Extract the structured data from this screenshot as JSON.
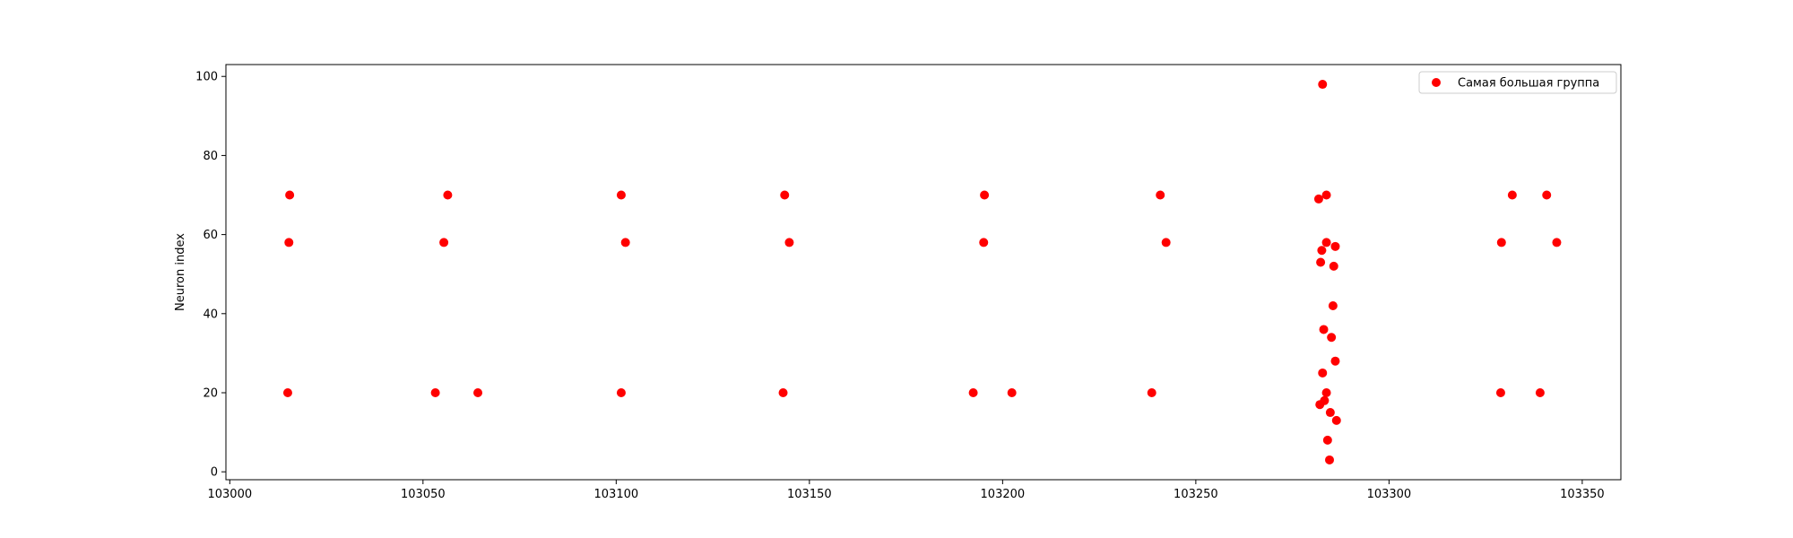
{
  "chart_data": {
    "type": "scatter",
    "title": "",
    "xlabel": "",
    "ylabel": "Neuron index",
    "xlim": [
      102999,
      103360
    ],
    "ylim": [
      -2,
      103
    ],
    "xticks": [
      103000,
      103050,
      103100,
      103150,
      103200,
      103250,
      103300,
      103350
    ],
    "yticks": [
      0,
      20,
      40,
      60,
      80,
      100
    ],
    "grid": false,
    "legend_position": "top-right",
    "colors": {
      "marker": "#ff0000",
      "axis": "#000000",
      "background": "#ffffff"
    },
    "series": [
      {
        "name": "Самая большая группа",
        "points": [
          [
            103015.5,
            70
          ],
          [
            103015.3,
            58
          ],
          [
            103015.0,
            20
          ],
          [
            103056.4,
            70
          ],
          [
            103055.4,
            58
          ],
          [
            103053.2,
            20
          ],
          [
            103064.2,
            20
          ],
          [
            103101.3,
            70
          ],
          [
            103102.4,
            58
          ],
          [
            103101.3,
            20
          ],
          [
            103143.6,
            70
          ],
          [
            103144.8,
            58
          ],
          [
            103143.2,
            20
          ],
          [
            103195.3,
            70
          ],
          [
            103195.1,
            58
          ],
          [
            103192.4,
            20
          ],
          [
            103202.4,
            20
          ],
          [
            103240.8,
            70
          ],
          [
            103242.3,
            58
          ],
          [
            103238.6,
            20
          ],
          [
            103282.8,
            98
          ],
          [
            103281.8,
            69
          ],
          [
            103283.8,
            70
          ],
          [
            103283.8,
            58
          ],
          [
            103286.1,
            57
          ],
          [
            103282.6,
            56
          ],
          [
            103282.3,
            53
          ],
          [
            103285.7,
            52
          ],
          [
            103285.5,
            42
          ],
          [
            103283.1,
            36
          ],
          [
            103285.1,
            34
          ],
          [
            103286.1,
            28
          ],
          [
            103282.8,
            25
          ],
          [
            103283.8,
            20
          ],
          [
            103283.3,
            18
          ],
          [
            103282.1,
            17
          ],
          [
            103284.8,
            15
          ],
          [
            103286.4,
            13
          ],
          [
            103284.1,
            8
          ],
          [
            103284.6,
            3
          ],
          [
            103329.1,
            58
          ],
          [
            103331.9,
            70
          ],
          [
            103328.9,
            20
          ],
          [
            103340.8,
            70
          ],
          [
            103343.4,
            58
          ],
          [
            103339.1,
            20
          ]
        ]
      }
    ]
  }
}
